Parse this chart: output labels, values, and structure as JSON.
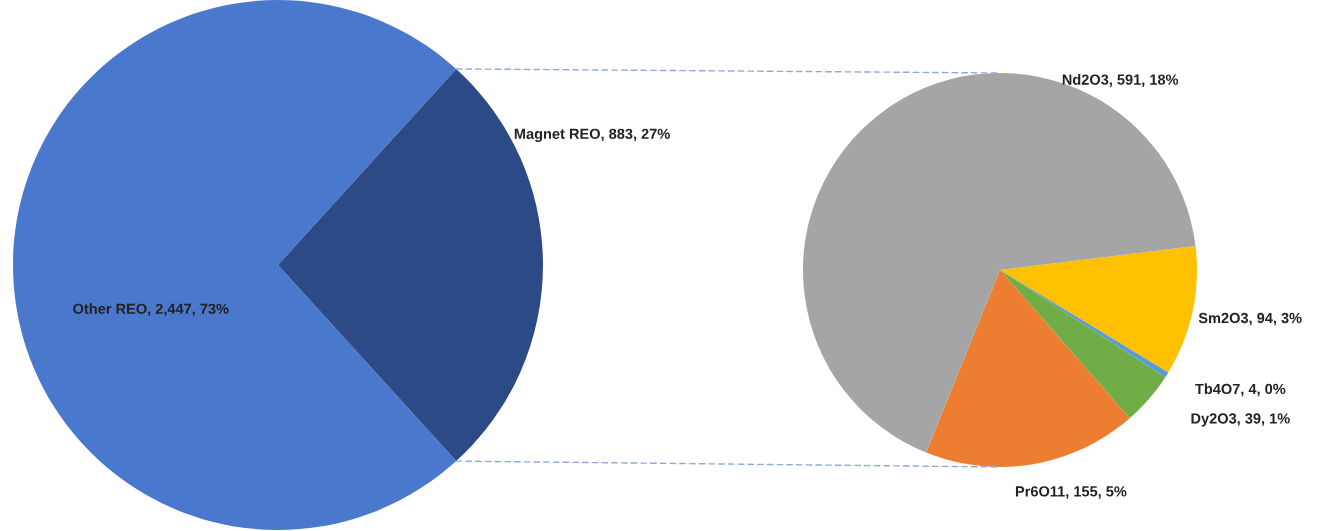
{
  "chart_data": [
    {
      "type": "pie",
      "categories": [
        "Other REO",
        "Magnet REO"
      ],
      "values": [
        2447,
        883
      ],
      "colors": [
        "#4a78cc",
        "#2b4a86"
      ],
      "value_labels": [
        "2,447, 73%",
        "883, 27%"
      ]
    },
    {
      "type": "pie",
      "categories": [
        "Sm2O3",
        "Tb4O7",
        "Dy2O3",
        "Pr6O11",
        "Nd2O3"
      ],
      "values": [
        94,
        4,
        39,
        155,
        591
      ],
      "colors": [
        "#ffc000",
        "#5b9bd5",
        "#70ad47",
        "#ed7d31",
        "#a5a5a5"
      ],
      "value_labels": [
        "94, 3%",
        "4, 0%",
        "39, 1%",
        "155, 5%",
        "591, 18%"
      ]
    }
  ]
}
